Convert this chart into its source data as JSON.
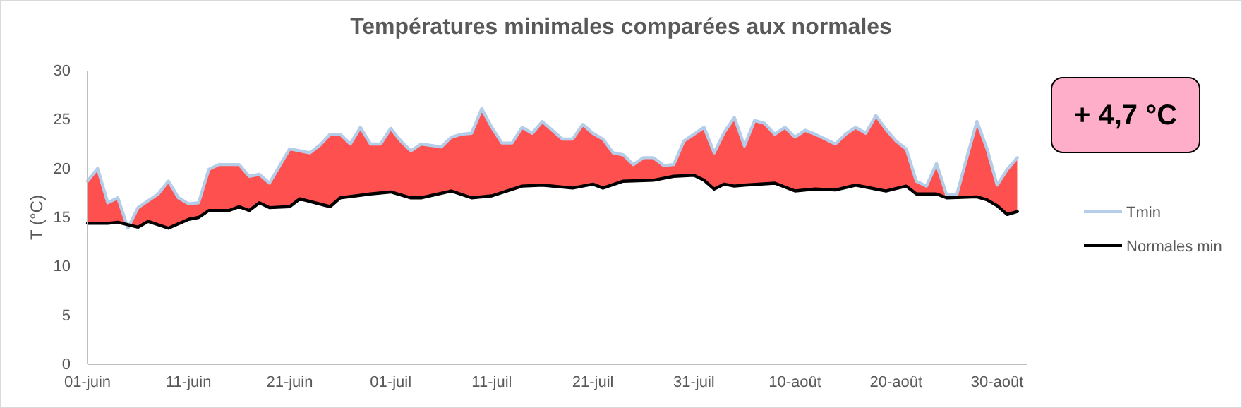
{
  "chart_data": {
    "type": "line",
    "title": "Températures minimales comparées aux normales",
    "ylabel": "T (°C)",
    "xlim": [
      "--06-01",
      "--09-02"
    ],
    "xticks": [
      {
        "value": "--06-01",
        "label": "01-juin"
      },
      {
        "value": "--06-11",
        "label": "11-juin"
      },
      {
        "value": "--06-21",
        "label": "21-juin"
      },
      {
        "value": "--07-01",
        "label": "01-juil"
      },
      {
        "value": "--07-11",
        "label": "11-juil"
      },
      {
        "value": "--07-21",
        "label": "21-juil"
      },
      {
        "value": "--07-31",
        "label": "31-juil"
      },
      {
        "value": "--08-10",
        "label": "10-août"
      },
      {
        "value": "--08-20",
        "label": "20-août"
      },
      {
        "value": "--08-30",
        "label": "30-août"
      }
    ],
    "ylim": [
      0,
      30
    ],
    "yticks": [
      0,
      5,
      10,
      15,
      20,
      25,
      30
    ],
    "grid": false,
    "legend": "right",
    "annotations": [
      "+ 4,7 °C"
    ],
    "series": [
      {
        "type": "area",
        "color": "#ff5050",
        "x": [
          "--06-01",
          "--06-02",
          "--06-03",
          "--06-04",
          "--06-05",
          "--06-06",
          "--06-08",
          "--06-09",
          "--06-10",
          "--06-11",
          "--06-12",
          "--06-13",
          "--06-14",
          "--06-16",
          "--06-17",
          "--06-18",
          "--06-19",
          "--06-21",
          "--06-23",
          "--06-24",
          "--06-25",
          "--06-26",
          "--06-27",
          "--06-28",
          "--06-29",
          "--06-30",
          "--07-01",
          "--07-02",
          "--07-03",
          "--07-04",
          "--07-06",
          "--07-07",
          "--07-08",
          "--07-09",
          "--07-10",
          "--07-11",
          "--07-12",
          "--07-13",
          "--07-14",
          "--07-15",
          "--07-16",
          "--07-18",
          "--07-19",
          "--07-20",
          "--07-21",
          "--07-22",
          "--07-23",
          "--07-24",
          "--07-25",
          "--07-26",
          "--07-27",
          "--07-28",
          "--07-29",
          "--07-30",
          "--08-01",
          "--08-02",
          "--08-03",
          "--08-04",
          "--08-05",
          "--08-06",
          "--08-07",
          "--08-08",
          "--08-09",
          "--08-10",
          "--08-11",
          "--08-12",
          "--08-14",
          "--08-15",
          "--08-16",
          "--08-17",
          "--08-18",
          "--08-19",
          "--08-20",
          "--08-21",
          "--08-22",
          "--08-23",
          "--08-24",
          "--08-25",
          "--08-26",
          "--08-27",
          "--08-28",
          "--08-29",
          "--08-30",
          "--08-31",
          "--09-01"
        ],
        "values": [
          18.7,
          20.0,
          16.5,
          17.0,
          13.9,
          16.0,
          17.4,
          18.7,
          17.0,
          16.4,
          16.5,
          19.9,
          20.4,
          20.4,
          19.2,
          19.4,
          18.5,
          22.0,
          21.6,
          22.4,
          23.5,
          23.5,
          22.5,
          24.2,
          22.5,
          22.5,
          24.1,
          22.8,
          21.8,
          22.5,
          22.2,
          23.2,
          23.5,
          23.6,
          26.1,
          24.2,
          22.6,
          22.6,
          24.2,
          23.6,
          24.8,
          23.0,
          23.0,
          24.5,
          23.6,
          23.0,
          21.6,
          21.4,
          20.4,
          21.1,
          21.1,
          20.3,
          20.4,
          22.8,
          24.2,
          21.6,
          23.7,
          25.2,
          22.3,
          24.9,
          24.6,
          23.5,
          24.2,
          23.2,
          23.9,
          23.5,
          22.5,
          23.5,
          24.2,
          23.6,
          25.4,
          24.0,
          22.8,
          22.0,
          18.7,
          18.2,
          20.5,
          17.3,
          17.3,
          21.1,
          24.8,
          22.0,
          18.3,
          19.9,
          21.1
        ]
      },
      {
        "name": "Tmin",
        "type": "line",
        "color": "#b4cde8",
        "x": [
          "--06-01",
          "--06-02",
          "--06-03",
          "--06-04",
          "--06-05",
          "--06-06",
          "--06-08",
          "--06-09",
          "--06-10",
          "--06-11",
          "--06-12",
          "--06-13",
          "--06-14",
          "--06-16",
          "--06-17",
          "--06-18",
          "--06-19",
          "--06-21",
          "--06-23",
          "--06-24",
          "--06-25",
          "--06-26",
          "--06-27",
          "--06-28",
          "--06-29",
          "--06-30",
          "--07-01",
          "--07-02",
          "--07-03",
          "--07-04",
          "--07-06",
          "--07-07",
          "--07-08",
          "--07-09",
          "--07-10",
          "--07-11",
          "--07-12",
          "--07-13",
          "--07-14",
          "--07-15",
          "--07-16",
          "--07-18",
          "--07-19",
          "--07-20",
          "--07-21",
          "--07-22",
          "--07-23",
          "--07-24",
          "--07-25",
          "--07-26",
          "--07-27",
          "--07-28",
          "--07-29",
          "--07-30",
          "--08-01",
          "--08-02",
          "--08-03",
          "--08-04",
          "--08-05",
          "--08-06",
          "--08-07",
          "--08-08",
          "--08-09",
          "--08-10",
          "--08-11",
          "--08-12",
          "--08-14",
          "--08-15",
          "--08-16",
          "--08-17",
          "--08-18",
          "--08-19",
          "--08-20",
          "--08-21",
          "--08-22",
          "--08-23",
          "--08-24",
          "--08-25",
          "--08-26",
          "--08-27",
          "--08-28",
          "--08-29",
          "--08-30",
          "--08-31",
          "--09-01"
        ],
        "values": [
          18.7,
          20.0,
          16.5,
          17.0,
          13.9,
          16.0,
          17.4,
          18.7,
          17.0,
          16.4,
          16.5,
          19.9,
          20.4,
          20.4,
          19.2,
          19.4,
          18.5,
          22.0,
          21.6,
          22.4,
          23.5,
          23.5,
          22.5,
          24.2,
          22.5,
          22.5,
          24.1,
          22.8,
          21.8,
          22.5,
          22.2,
          23.2,
          23.5,
          23.6,
          26.1,
          24.2,
          22.6,
          22.6,
          24.2,
          23.6,
          24.8,
          23.0,
          23.0,
          24.5,
          23.6,
          23.0,
          21.6,
          21.4,
          20.4,
          21.1,
          21.1,
          20.3,
          20.4,
          22.8,
          24.2,
          21.6,
          23.7,
          25.2,
          22.3,
          24.9,
          24.6,
          23.5,
          24.2,
          23.2,
          23.9,
          23.5,
          22.5,
          23.5,
          24.2,
          23.6,
          25.4,
          24.0,
          22.8,
          22.0,
          18.7,
          18.2,
          20.5,
          17.3,
          17.3,
          21.1,
          24.8,
          22.0,
          18.3,
          19.9,
          21.1
        ]
      },
      {
        "name": "Normales min",
        "type": "line",
        "color": "#000000",
        "x": [
          "--06-01",
          "--06-03",
          "--06-04",
          "--06-06",
          "--06-07",
          "--06-09",
          "--06-11",
          "--06-12",
          "--06-13",
          "--06-15",
          "--06-16",
          "--06-17",
          "--06-18",
          "--06-19",
          "--06-21",
          "--06-22",
          "--06-25",
          "--06-26",
          "--06-29",
          "--07-01",
          "--07-03",
          "--07-04",
          "--07-07",
          "--07-09",
          "--07-11",
          "--07-14",
          "--07-16",
          "--07-19",
          "--07-21",
          "--07-22",
          "--07-24",
          "--07-27",
          "--07-29",
          "--07-31",
          "--08-01",
          "--08-02",
          "--08-03",
          "--08-04",
          "--08-05",
          "--08-08",
          "--08-10",
          "--08-12",
          "--08-14",
          "--08-16",
          "--08-19",
          "--08-21",
          "--08-22",
          "--08-24",
          "--08-25",
          "--08-28",
          "--08-29",
          "--08-30",
          "--08-31",
          "--09-01"
        ],
        "values": [
          14.4,
          14.4,
          14.5,
          14.0,
          14.6,
          13.9,
          14.8,
          15.0,
          15.7,
          15.7,
          16.1,
          15.7,
          16.5,
          16.0,
          16.1,
          16.9,
          16.1,
          17.0,
          17.4,
          17.6,
          17.0,
          17.0,
          17.7,
          17.0,
          17.2,
          18.2,
          18.3,
          18.0,
          18.4,
          18.0,
          18.7,
          18.8,
          19.2,
          19.3,
          18.8,
          17.9,
          18.4,
          18.2,
          18.3,
          18.5,
          17.7,
          17.9,
          17.8,
          18.3,
          17.7,
          18.2,
          17.4,
          17.4,
          17.0,
          17.1,
          16.8,
          16.2,
          15.3,
          15.6
        ]
      }
    ]
  }
}
